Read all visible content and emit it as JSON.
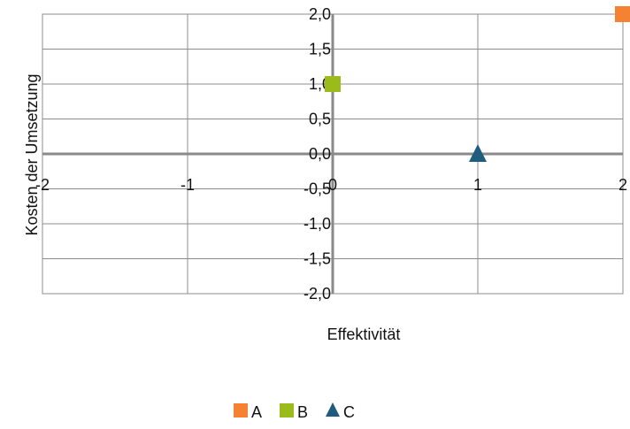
{
  "chart_data": {
    "type": "scatter",
    "xlabel": "Effektivität",
    "ylabel": "Kosten der Umsetzung",
    "xlim": [
      -2,
      2
    ],
    "ylim": [
      -2,
      2
    ],
    "x_ticks": [
      "-2",
      "-1",
      "0",
      "1",
      "2"
    ],
    "y_ticks": [
      "2,0",
      "1,5",
      "1,0",
      "0,5",
      "0,0",
      "-0,5",
      "-1,0",
      "-1,5",
      "-2,0"
    ],
    "grid": true,
    "legend_position": "bottom",
    "series": [
      {
        "name": "A",
        "marker": "square",
        "color": "#F58233",
        "points": [
          {
            "x": 2,
            "y": 2
          }
        ]
      },
      {
        "name": "B",
        "marker": "square",
        "color": "#9BBB1B",
        "points": [
          {
            "x": 0,
            "y": 1
          }
        ]
      },
      {
        "name": "C",
        "marker": "triangle",
        "color": "#1F5C7E",
        "points": [
          {
            "x": 1,
            "y": 0
          }
        ]
      }
    ]
  }
}
